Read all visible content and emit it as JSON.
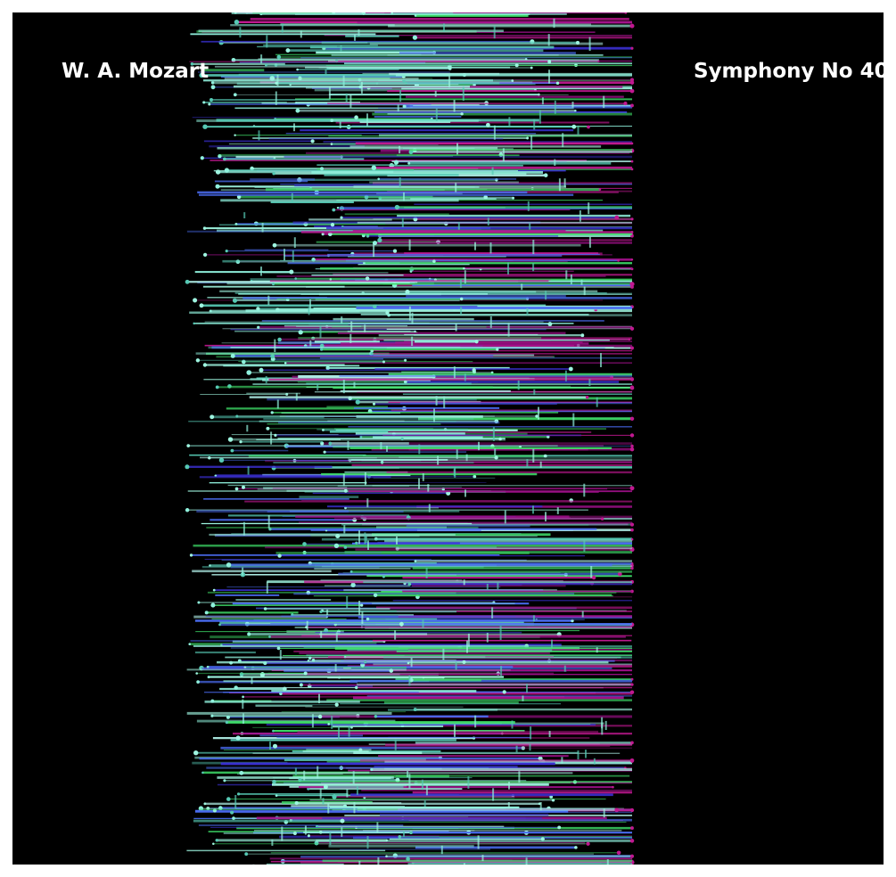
{
  "composer": "W. A. Mozart",
  "work": "Symphony No 40",
  "colors": {
    "background": "#000000",
    "border": "#ffffff",
    "text": "#ffffff",
    "palette": [
      "#8ff0dc",
      "#9ef5e0",
      "#56c9b4",
      "#3fe06a",
      "#4a6cf0",
      "#3a2fd0",
      "#6a1fb0",
      "#c01890",
      "#a0108a",
      "#b0f0e8"
    ]
  }
}
